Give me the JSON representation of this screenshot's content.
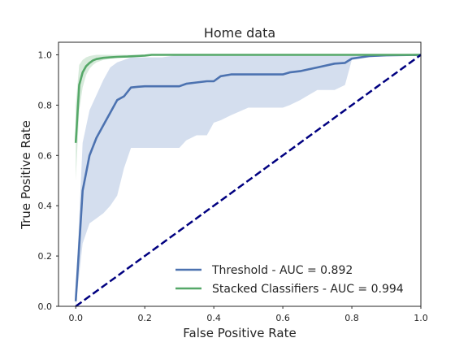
{
  "chart_data": {
    "type": "line",
    "title": "Home data",
    "xlabel": "False Positive Rate",
    "ylabel": "True Positive Rate",
    "xlim": [
      -0.05,
      1.0
    ],
    "ylim": [
      0.0,
      1.05
    ],
    "xticks": [
      0.0,
      0.2,
      0.4,
      0.6,
      0.8,
      1.0
    ],
    "xtick_labels": [
      "0.0",
      "0.2",
      "0.4",
      "0.6",
      "0.8",
      "1.0"
    ],
    "yticks": [
      0.0,
      0.2,
      0.4,
      0.6,
      0.8,
      1.0
    ],
    "ytick_labels": [
      "0.0",
      "0.2",
      "0.4",
      "0.6",
      "0.8",
      "1.0"
    ],
    "grid": false,
    "legend_position": "lower-right",
    "series": [
      {
        "name": "Threshold - AUC = 0.892",
        "color": "#4C72B0",
        "band_color": "#C5D3E8",
        "x": [
          0.0,
          0.02,
          0.04,
          0.06,
          0.08,
          0.1,
          0.12,
          0.14,
          0.16,
          0.18,
          0.2,
          0.25,
          0.3,
          0.32,
          0.35,
          0.38,
          0.4,
          0.42,
          0.45,
          0.5,
          0.55,
          0.6,
          0.62,
          0.65,
          0.7,
          0.75,
          0.78,
          0.8,
          0.85,
          0.9,
          1.0
        ],
        "y": [
          0.02,
          0.46,
          0.6,
          0.67,
          0.72,
          0.77,
          0.82,
          0.835,
          0.87,
          0.873,
          0.875,
          0.875,
          0.875,
          0.885,
          0.89,
          0.895,
          0.895,
          0.915,
          0.922,
          0.922,
          0.922,
          0.922,
          0.93,
          0.935,
          0.95,
          0.965,
          0.968,
          0.985,
          0.995,
          0.998,
          1.0
        ],
        "lower": [
          0.0,
          0.25,
          0.33,
          0.35,
          0.37,
          0.4,
          0.44,
          0.55,
          0.63,
          0.63,
          0.63,
          0.63,
          0.63,
          0.66,
          0.68,
          0.68,
          0.73,
          0.74,
          0.76,
          0.79,
          0.79,
          0.79,
          0.8,
          0.82,
          0.86,
          0.86,
          0.88,
          0.98,
          0.99,
          0.995,
          1.0
        ],
        "upper": [
          0.05,
          0.65,
          0.78,
          0.84,
          0.9,
          0.95,
          0.97,
          0.98,
          0.99,
          0.99,
          0.99,
          0.99,
          1.0,
          1.0,
          1.0,
          1.0,
          1.0,
          1.0,
          1.0,
          1.0,
          1.0,
          1.0,
          1.0,
          1.0,
          1.0,
          1.0,
          1.0,
          1.0,
          1.0,
          1.0,
          1.0
        ]
      },
      {
        "name": "Stacked Classifiers - AUC = 0.994",
        "color": "#55A868",
        "band_color": "#C9E3CF",
        "x": [
          0.0,
          0.01,
          0.02,
          0.03,
          0.04,
          0.05,
          0.06,
          0.08,
          0.1,
          0.12,
          0.15,
          0.2,
          0.22,
          0.3,
          1.0
        ],
        "y": [
          0.65,
          0.88,
          0.93,
          0.955,
          0.968,
          0.978,
          0.983,
          0.988,
          0.99,
          0.992,
          0.993,
          0.997,
          1.0,
          1.0,
          1.0
        ],
        "lower": [
          0.5,
          0.78,
          0.87,
          0.92,
          0.945,
          0.96,
          0.97,
          0.98,
          0.985,
          0.988,
          0.99,
          0.995,
          1.0,
          1.0,
          1.0
        ],
        "upper": [
          0.8,
          0.96,
          0.98,
          0.99,
          0.995,
          0.998,
          1.0,
          1.0,
          1.0,
          1.0,
          1.0,
          1.0,
          1.0,
          1.0,
          1.0
        ]
      },
      {
        "name": "",
        "color": "#000080",
        "dashed": true,
        "x": [
          0.0,
          1.0
        ],
        "y": [
          0.0,
          1.0
        ]
      }
    ]
  }
}
